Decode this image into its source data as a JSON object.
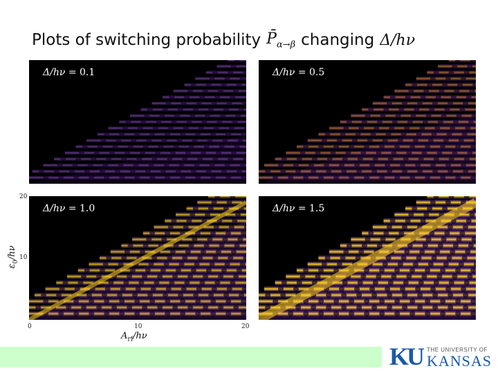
{
  "title": {
    "text": "Plots of switching probability",
    "symbol_base": "P̄",
    "symbol_sub": "α→β",
    "changing": "changing",
    "param": "Δ/hν"
  },
  "panels": [
    {
      "label_var": "Δ/hν",
      "label_val": "= 0.1",
      "delta": 0.1
    },
    {
      "label_var": "Δ/hν",
      "label_val": "= 0.5",
      "delta": 0.5
    },
    {
      "label_var": "Δ/hν",
      "label_val": "= 1.0",
      "delta": 1.0
    },
    {
      "label_var": "Δ/hν",
      "label_val": "= 1.5",
      "delta": 1.5
    }
  ],
  "axes": {
    "xlabel_main": "A",
    "xlabel_sub": "rf",
    "xlabel_rest": "/hν",
    "ylabel_main": "ε",
    "ylabel_sub": "0",
    "ylabel_rest": "/hν",
    "xticks": [
      "0",
      "10",
      "20"
    ],
    "yticks": [
      "20",
      "10"
    ],
    "xlim": [
      0,
      20
    ],
    "ylim": [
      0,
      20
    ]
  },
  "colors": {
    "background": "#000000",
    "low": "#2a0a40",
    "mid": "#7b3fe0",
    "high": "#ffd21a",
    "footer_band": "#ccffcc",
    "logo": "#1a5aa6"
  },
  "logo": {
    "mark": "KU",
    "small_text": "THE UNIVERSITY OF",
    "big_text": "KANSAS"
  }
}
